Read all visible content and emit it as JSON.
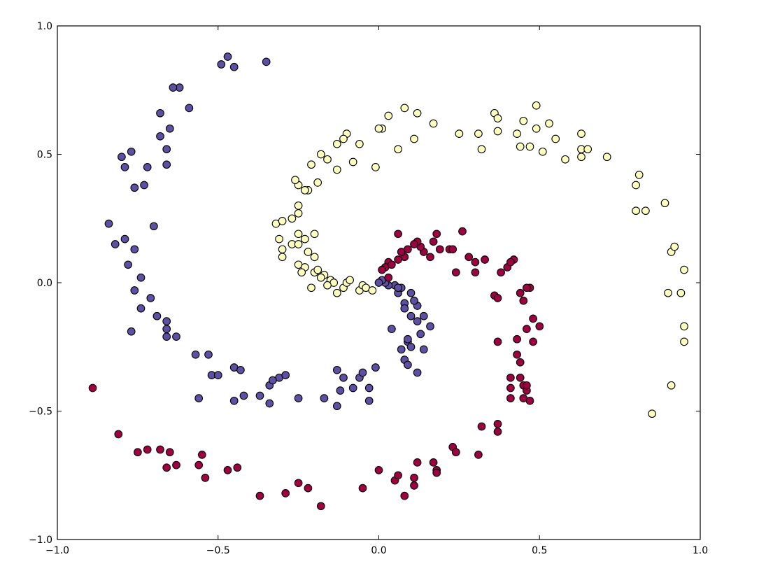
{
  "chart_data": {
    "type": "scatter",
    "title": "",
    "xlabel": "",
    "ylabel": "",
    "xlim": [
      -1.0,
      1.0
    ],
    "ylim": [
      -1.0,
      1.0
    ],
    "xticks": [
      -1.0,
      -0.5,
      0.0,
      0.5,
      1.0
    ],
    "yticks": [
      -1.0,
      -0.5,
      0.0,
      0.5,
      1.0
    ],
    "xtick_labels": [
      "−1.0",
      "−0.5",
      "0.0",
      "0.5",
      "1.0"
    ],
    "ytick_labels": [
      "−1.0",
      "−0.5",
      "0.0",
      "0.5",
      "1.0"
    ],
    "grid": false,
    "legend": "none",
    "series": [
      {
        "color": "#5e4fa2",
        "points": [
          [
            -0.35,
            0.86
          ],
          [
            -0.47,
            0.88
          ],
          [
            -0.45,
            0.84
          ],
          [
            -0.49,
            0.85
          ],
          [
            -0.59,
            0.68
          ],
          [
            -0.62,
            0.76
          ],
          [
            -0.64,
            0.76
          ],
          [
            -0.68,
            0.66
          ],
          [
            -0.65,
            0.6
          ],
          [
            -0.68,
            0.57
          ],
          [
            -0.66,
            0.52
          ],
          [
            -0.66,
            0.46
          ],
          [
            -0.72,
            0.45
          ],
          [
            -0.77,
            0.51
          ],
          [
            -0.8,
            0.49
          ],
          [
            -0.79,
            0.45
          ],
          [
            -0.76,
            0.37
          ],
          [
            -0.73,
            0.38
          ],
          [
            -0.7,
            0.22
          ],
          [
            -0.84,
            0.23
          ],
          [
            -0.79,
            0.17
          ],
          [
            -0.82,
            0.15
          ],
          [
            -0.76,
            0.13
          ],
          [
            -0.78,
            0.07
          ],
          [
            -0.74,
            0.02
          ],
          [
            -0.76,
            -0.03
          ],
          [
            -0.71,
            -0.06
          ],
          [
            -0.74,
            -0.1
          ],
          [
            -0.69,
            -0.13
          ],
          [
            -0.66,
            -0.15
          ],
          [
            -0.77,
            -0.19
          ],
          [
            -0.66,
            -0.18
          ],
          [
            -0.66,
            -0.21
          ],
          [
            -0.63,
            -0.21
          ],
          [
            -0.57,
            -0.28
          ],
          [
            -0.53,
            -0.28
          ],
          [
            -0.52,
            -0.36
          ],
          [
            -0.5,
            -0.36
          ],
          [
            -0.45,
            -0.33
          ],
          [
            -0.43,
            -0.34
          ],
          [
            -0.56,
            -0.45
          ],
          [
            -0.45,
            -0.46
          ],
          [
            -0.42,
            -0.44
          ],
          [
            -0.37,
            -0.44
          ],
          [
            -0.34,
            -0.47
          ],
          [
            -0.34,
            -0.4
          ],
          [
            -0.31,
            -0.37
          ],
          [
            -0.33,
            -0.38
          ],
          [
            -0.29,
            -0.36
          ],
          [
            -0.25,
            -0.45
          ],
          [
            -0.17,
            -0.45
          ],
          [
            -0.13,
            -0.48
          ],
          [
            -0.13,
            -0.34
          ],
          [
            -0.11,
            -0.37
          ],
          [
            -0.12,
            -0.42
          ],
          [
            -0.08,
            -0.41
          ],
          [
            -0.06,
            -0.37
          ],
          [
            -0.05,
            -0.35
          ],
          [
            -0.03,
            -0.41
          ],
          [
            -0.03,
            -0.46
          ],
          [
            -0.01,
            -0.33
          ],
          [
            0.04,
            -0.18
          ],
          [
            0.07,
            -0.26
          ],
          [
            0.08,
            -0.3
          ],
          [
            0.09,
            -0.23
          ],
          [
            0.1,
            -0.25
          ],
          [
            0.09,
            -0.32
          ],
          [
            0.12,
            -0.35
          ],
          [
            0.14,
            -0.26
          ],
          [
            0.09,
            -0.22
          ],
          [
            0.12,
            -0.15
          ],
          [
            0.14,
            -0.13
          ],
          [
            0.16,
            -0.17
          ],
          [
            0.1,
            -0.13
          ],
          [
            0.12,
            -0.09
          ],
          [
            0.11,
            -0.07
          ],
          [
            0.1,
            -0.04
          ],
          [
            0.08,
            -0.08
          ],
          [
            0.06,
            -0.04
          ],
          [
            0.07,
            -0.02
          ],
          [
            0.05,
            -0.01
          ],
          [
            0.03,
            -0.01
          ],
          [
            0.02,
            0.0
          ],
          [
            0.01,
            0.01
          ],
          [
            0.0,
            0.0
          ],
          [
            0.06,
            -0.02
          ],
          [
            0.08,
            -0.1
          ],
          [
            0.13,
            -0.2
          ]
        ]
      },
      {
        "color": "#9e0142",
        "points": [
          [
            -0.89,
            -0.41
          ],
          [
            -0.81,
            -0.59
          ],
          [
            -0.72,
            -0.65
          ],
          [
            -0.75,
            -0.66
          ],
          [
            -0.68,
            -0.65
          ],
          [
            -0.65,
            -0.66
          ],
          [
            -0.63,
            -0.71
          ],
          [
            -0.66,
            -0.72
          ],
          [
            -0.56,
            -0.71
          ],
          [
            -0.55,
            -0.67
          ],
          [
            -0.54,
            -0.76
          ],
          [
            -0.47,
            -0.73
          ],
          [
            -0.44,
            -0.72
          ],
          [
            -0.37,
            -0.83
          ],
          [
            -0.29,
            -0.82
          ],
          [
            -0.25,
            -0.78
          ],
          [
            -0.22,
            -0.8
          ],
          [
            -0.18,
            -0.87
          ],
          [
            -0.05,
            -0.8
          ],
          [
            0.0,
            -0.73
          ],
          [
            0.05,
            -0.77
          ],
          [
            0.06,
            -0.75
          ],
          [
            0.08,
            -0.83
          ],
          [
            0.11,
            -0.79
          ],
          [
            0.11,
            -0.76
          ],
          [
            0.12,
            -0.7
          ],
          [
            0.17,
            -0.7
          ],
          [
            0.18,
            -0.73
          ],
          [
            0.18,
            -0.74
          ],
          [
            0.23,
            -0.64
          ],
          [
            0.24,
            -0.66
          ],
          [
            0.31,
            -0.67
          ],
          [
            0.32,
            -0.56
          ],
          [
            0.37,
            -0.55
          ],
          [
            0.37,
            -0.58
          ],
          [
            0.41,
            -0.41
          ],
          [
            0.41,
            -0.37
          ],
          [
            0.41,
            -0.45
          ],
          [
            0.44,
            -0.37
          ],
          [
            0.45,
            -0.4
          ],
          [
            0.46,
            -0.42
          ],
          [
            0.45,
            -0.45
          ],
          [
            0.47,
            -0.46
          ],
          [
            0.46,
            -0.4
          ],
          [
            0.44,
            -0.31
          ],
          [
            0.43,
            -0.28
          ],
          [
            0.46,
            -0.18
          ],
          [
            0.48,
            -0.14
          ],
          [
            0.5,
            -0.17
          ],
          [
            0.48,
            -0.23
          ],
          [
            0.43,
            -0.22
          ],
          [
            0.37,
            -0.23
          ],
          [
            0.44,
            -0.04
          ],
          [
            0.45,
            -0.07
          ],
          [
            0.47,
            -0.02
          ],
          [
            0.46,
            -0.02
          ],
          [
            0.36,
            -0.05
          ],
          [
            0.37,
            -0.06
          ],
          [
            0.38,
            0.04
          ],
          [
            0.4,
            0.06
          ],
          [
            0.42,
            0.09
          ],
          [
            0.41,
            0.08
          ],
          [
            0.33,
            0.09
          ],
          [
            0.3,
            0.08
          ],
          [
            0.3,
            0.04
          ],
          [
            0.26,
            0.2
          ],
          [
            0.22,
            0.13
          ],
          [
            0.23,
            0.13
          ],
          [
            0.24,
            0.04
          ],
          [
            0.19,
            0.13
          ],
          [
            0.18,
            0.19
          ],
          [
            0.17,
            0.16
          ],
          [
            0.14,
            0.12
          ],
          [
            0.13,
            0.14
          ],
          [
            0.12,
            0.16
          ],
          [
            0.11,
            0.15
          ],
          [
            0.09,
            0.13
          ],
          [
            0.08,
            0.1
          ],
          [
            0.06,
            0.19
          ],
          [
            0.06,
            0.09
          ],
          [
            0.03,
            0.08
          ],
          [
            0.02,
            0.06
          ],
          [
            0.01,
            0.05
          ],
          [
            0.04,
            0.07
          ],
          [
            0.03,
            0.02
          ],
          [
            0.07,
            0.12
          ],
          [
            0.16,
            0.1
          ],
          [
            0.28,
            0.1
          ]
        ]
      },
      {
        "color": "#ffffbf",
        "points": [
          [
            0.08,
            0.68
          ],
          [
            0.12,
            0.66
          ],
          [
            0.03,
            0.65
          ],
          [
            0.01,
            0.6
          ],
          [
            0.0,
            0.6
          ],
          [
            -0.01,
            0.45
          ],
          [
            0.06,
            0.52
          ],
          [
            0.11,
            0.56
          ],
          [
            0.17,
            0.62
          ],
          [
            0.25,
            0.58
          ],
          [
            0.31,
            0.58
          ],
          [
            0.32,
            0.52
          ],
          [
            0.36,
            0.66
          ],
          [
            0.37,
            0.64
          ],
          [
            0.37,
            0.59
          ],
          [
            0.43,
            0.58
          ],
          [
            0.44,
            0.53
          ],
          [
            0.45,
            0.63
          ],
          [
            0.47,
            0.53
          ],
          [
            0.49,
            0.69
          ],
          [
            0.49,
            0.6
          ],
          [
            0.51,
            0.51
          ],
          [
            0.53,
            0.62
          ],
          [
            0.55,
            0.56
          ],
          [
            0.58,
            0.48
          ],
          [
            0.63,
            0.58
          ],
          [
            0.63,
            0.52
          ],
          [
            0.63,
            0.49
          ],
          [
            0.65,
            0.52
          ],
          [
            0.71,
            0.49
          ],
          [
            0.8,
            0.38
          ],
          [
            0.81,
            0.42
          ],
          [
            0.8,
            0.28
          ],
          [
            0.83,
            0.28
          ],
          [
            0.89,
            0.31
          ],
          [
            0.91,
            0.12
          ],
          [
            0.92,
            0.14
          ],
          [
            0.9,
            -0.04
          ],
          [
            0.95,
            0.05
          ],
          [
            0.94,
            -0.04
          ],
          [
            0.95,
            -0.17
          ],
          [
            0.95,
            -0.23
          ],
          [
            0.91,
            -0.4
          ],
          [
            0.85,
            -0.51
          ],
          [
            -0.06,
            0.54
          ],
          [
            -0.08,
            0.47
          ],
          [
            -0.1,
            0.58
          ],
          [
            -0.11,
            0.56
          ],
          [
            -0.13,
            0.54
          ],
          [
            -0.13,
            0.44
          ],
          [
            -0.16,
            0.48
          ],
          [
            -0.18,
            0.5
          ],
          [
            -0.19,
            0.39
          ],
          [
            -0.21,
            0.46
          ],
          [
            -0.22,
            0.36
          ],
          [
            -0.23,
            0.36
          ],
          [
            -0.25,
            0.38
          ],
          [
            -0.26,
            0.4
          ],
          [
            -0.25,
            0.3
          ],
          [
            -0.25,
            0.27
          ],
          [
            -0.27,
            0.25
          ],
          [
            -0.32,
            0.23
          ],
          [
            -0.3,
            0.24
          ],
          [
            -0.2,
            0.19
          ],
          [
            -0.23,
            0.17
          ],
          [
            -0.25,
            0.19
          ],
          [
            -0.27,
            0.15
          ],
          [
            -0.31,
            0.17
          ],
          [
            -0.3,
            0.13
          ],
          [
            -0.3,
            0.1
          ],
          [
            -0.25,
            0.15
          ],
          [
            -0.22,
            0.12
          ],
          [
            -0.2,
            0.1
          ],
          [
            -0.25,
            0.07
          ],
          [
            -0.23,
            0.06
          ],
          [
            -0.2,
            0.04
          ],
          [
            -0.19,
            0.05
          ],
          [
            -0.17,
            0.03
          ],
          [
            -0.15,
            0.01
          ],
          [
            -0.14,
            0.0
          ],
          [
            -0.13,
            -0.04
          ],
          [
            -0.11,
            -0.02
          ],
          [
            -0.1,
            0.0
          ],
          [
            -0.09,
            0.01
          ],
          [
            -0.06,
            -0.03
          ],
          [
            -0.05,
            -0.01
          ],
          [
            -0.04,
            -0.02
          ],
          [
            -0.02,
            -0.03
          ],
          [
            -0.21,
            -0.02
          ],
          [
            -0.16,
            -0.01
          ],
          [
            -0.24,
            0.04
          ],
          [
            -0.18,
            0.02
          ]
        ]
      }
    ]
  }
}
